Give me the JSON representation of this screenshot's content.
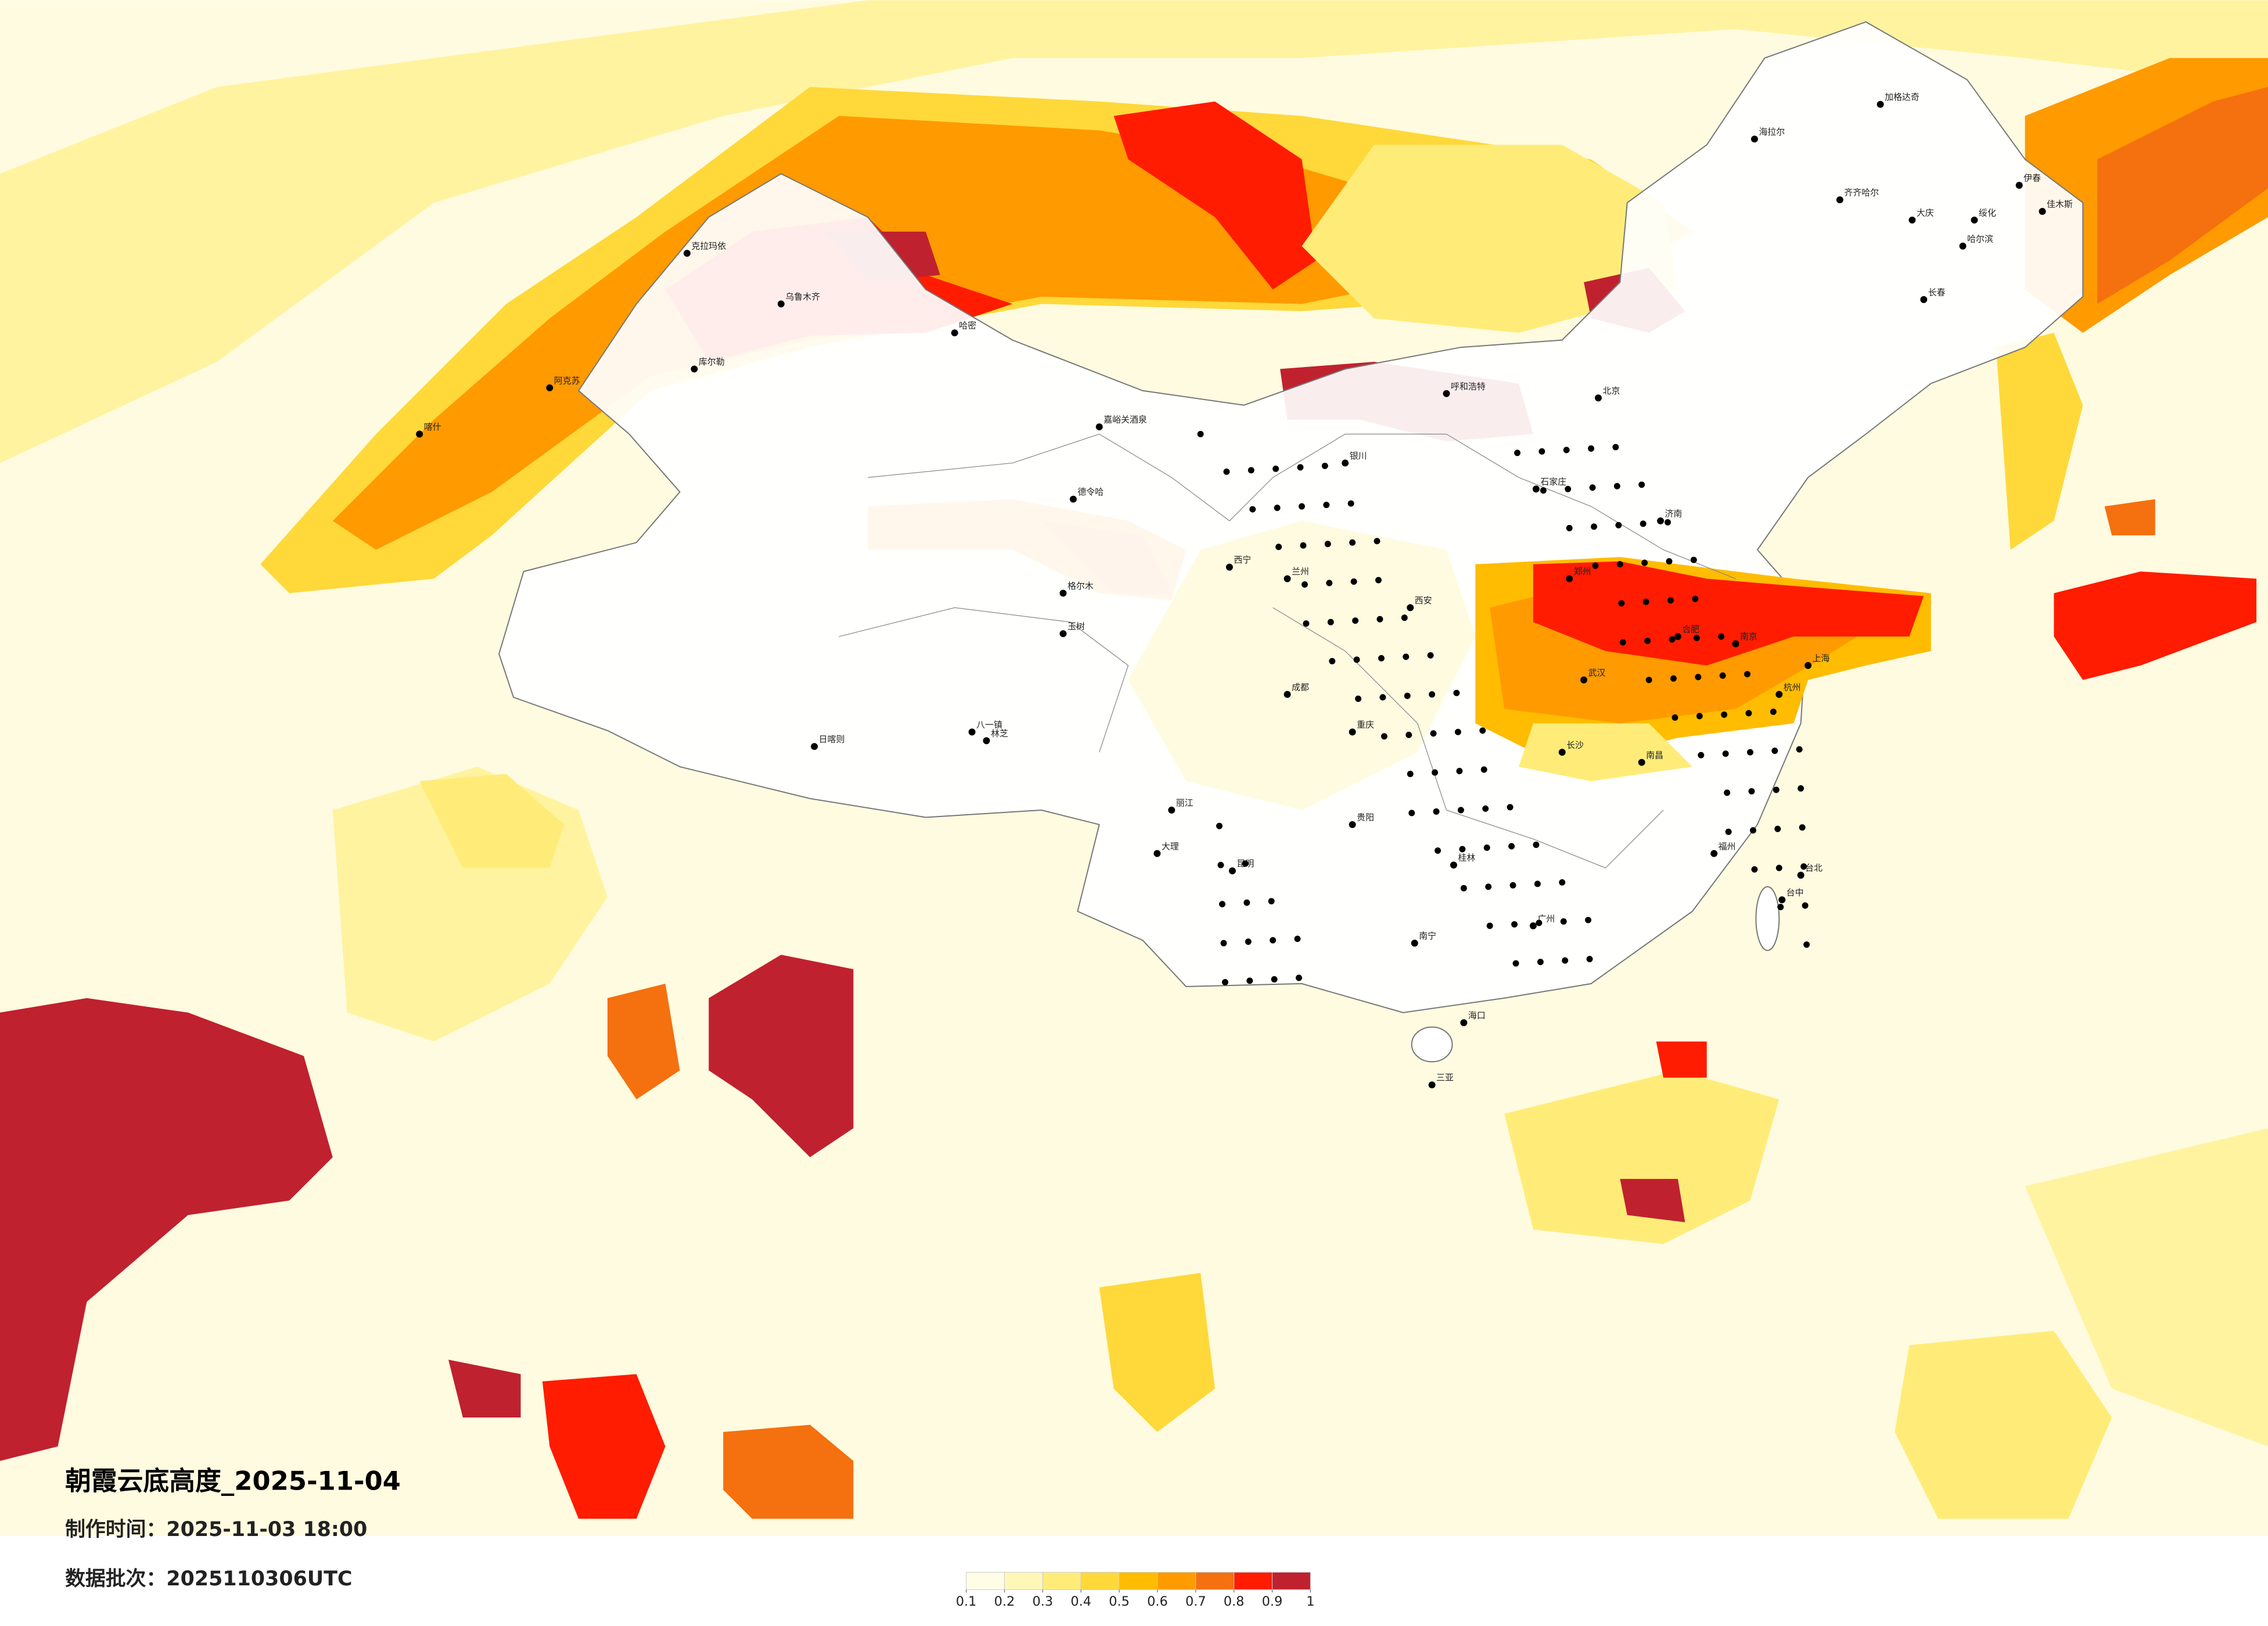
{
  "header": {
    "title": "朝霞云底高度_2025-11-04",
    "made_time": "制作时间：2025-11-03 18:00",
    "batch": "数据批次：2025110306UTC"
  },
  "legend": {
    "ticks": [
      0.1,
      0.2,
      0.3,
      0.4,
      0.5,
      0.6,
      0.7,
      0.8,
      0.9,
      1
    ],
    "colors": [
      "#fffde6",
      "#fff7b8",
      "#ffec78",
      "#ffd83a",
      "#ffbc00",
      "#ff9a00",
      "#f5700f",
      "#ff1c00",
      "#c0212e"
    ]
  },
  "cities": [
    "喀什",
    "阿克苏",
    "库尔勒",
    "乌鲁木齐",
    "克拉玛依",
    "哈密",
    "嘉峪关酒泉",
    "德令哈",
    "格尔木",
    "玉树",
    "日喀则",
    "八一镇",
    "林芝",
    "西宁",
    "兰州",
    "银川",
    "呼和浩特",
    "海拉尔",
    "加格达奇",
    "齐齐哈尔",
    "大庆",
    "哈尔滨",
    "长春",
    "绥化",
    "伊春",
    "佳木斯",
    "北京",
    "石家庄",
    "济南",
    "郑州",
    "西安",
    "武汉",
    "合肥",
    "南京",
    "上海",
    "杭州",
    "南昌",
    "长沙",
    "成都",
    "重庆",
    "贵阳",
    "昆明",
    "桂林",
    "南宁",
    "广州",
    "福州",
    "台北",
    "台中",
    "海口",
    "三亚",
    "大理",
    "丽江"
  ]
}
